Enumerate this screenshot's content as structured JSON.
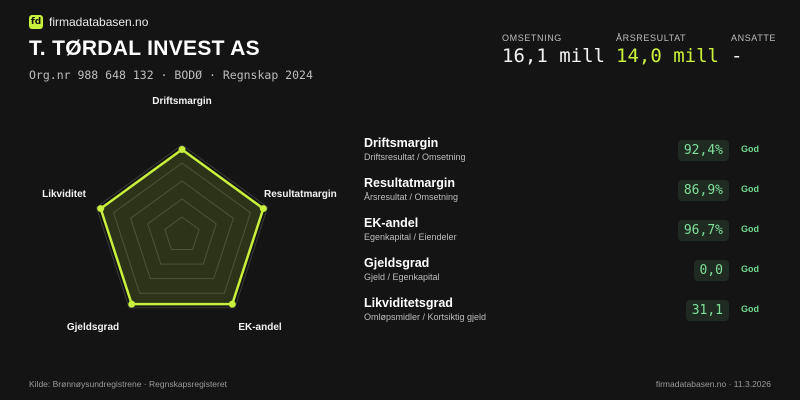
{
  "brand": {
    "logo_text": "fd",
    "name": "firmadatabasen.no",
    "accent": "#c8f03c"
  },
  "company": {
    "name": "T. TØRDAL INVEST AS",
    "org_line": "Org.nr 988 648 132  ·  BODØ  ·  Regnskap 2024"
  },
  "kpis": [
    {
      "label": "OMSETNING",
      "value": "16,1 mill"
    },
    {
      "label": "ÅRSRESULTAT",
      "value": "14,0 mill"
    },
    {
      "label": "ANSATTE",
      "value": "-"
    }
  ],
  "radar": {
    "axes": [
      "Driftsmargin",
      "Resultatmargin",
      "EK-andel",
      "Gjeldsgrad",
      "Likviditet"
    ],
    "values": [
      0.95,
      0.95,
      0.95,
      0.95,
      0.95
    ],
    "levels": 5,
    "color": "#c8f03c"
  },
  "metrics": [
    {
      "name": "Driftsmargin",
      "formula": "Driftsresultat / Omsetning",
      "value": "92,4%",
      "status": "God"
    },
    {
      "name": "Resultatmargin",
      "formula": "Årsresultat / Omsetning",
      "value": "86,9%",
      "status": "God"
    },
    {
      "name": "EK-andel",
      "formula": "Egenkapital / Eiendeler",
      "value": "96,7%",
      "status": "God"
    },
    {
      "name": "Gjeldsgrad",
      "formula": "Gjeld / Egenkapital",
      "value": "0,0",
      "status": "God"
    },
    {
      "name": "Likviditetsgrad",
      "formula": "Omløpsmidler / Kortsiktig gjeld",
      "value": "31,1",
      "status": "God"
    }
  ],
  "footer": {
    "source": "Kilde: Brønnøysundregistrene · Regnskapsregisteret",
    "site_date": "firmadatabasen.no · 11.3.2026"
  }
}
